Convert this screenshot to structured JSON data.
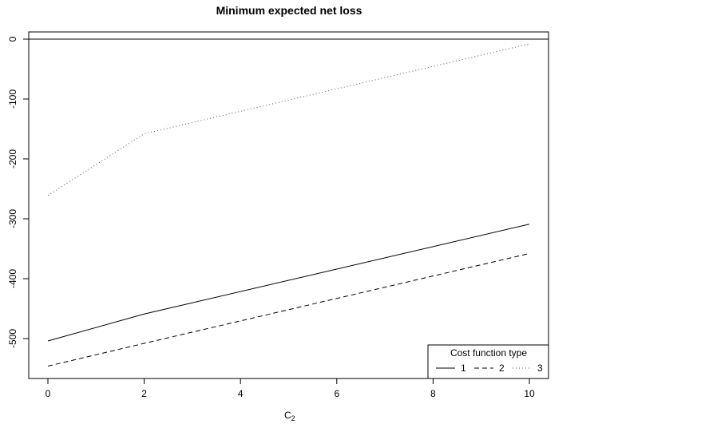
{
  "chart_data": {
    "type": "line",
    "title": "Minimum expected net loss",
    "xlabel": "C",
    "xlabel_subscript": "2",
    "ylabel": "",
    "x": [
      0,
      2,
      10
    ],
    "xlim": [
      0,
      10
    ],
    "ylim": [
      -550,
      0
    ],
    "x_ticks": [
      0,
      2,
      4,
      6,
      8,
      10
    ],
    "y_ticks": [
      0,
      -100,
      -200,
      -300,
      -400,
      -500
    ],
    "series": [
      {
        "name": "1",
        "line_style": "solid",
        "values": [
          -504,
          -459,
          -309
        ]
      },
      {
        "name": "2",
        "line_style": "dashed",
        "values": [
          -546,
          -508,
          -358
        ]
      },
      {
        "name": "3",
        "line_style": "dotted",
        "values": [
          -261,
          -158,
          -8
        ]
      }
    ],
    "reference_line_y": 0,
    "legend": {
      "title": "Cost function type",
      "placement": "bottom-right"
    },
    "grid": false,
    "colors": {
      "line": "#000000",
      "dotted_line": "#555555",
      "background": "#ffffff"
    }
  }
}
